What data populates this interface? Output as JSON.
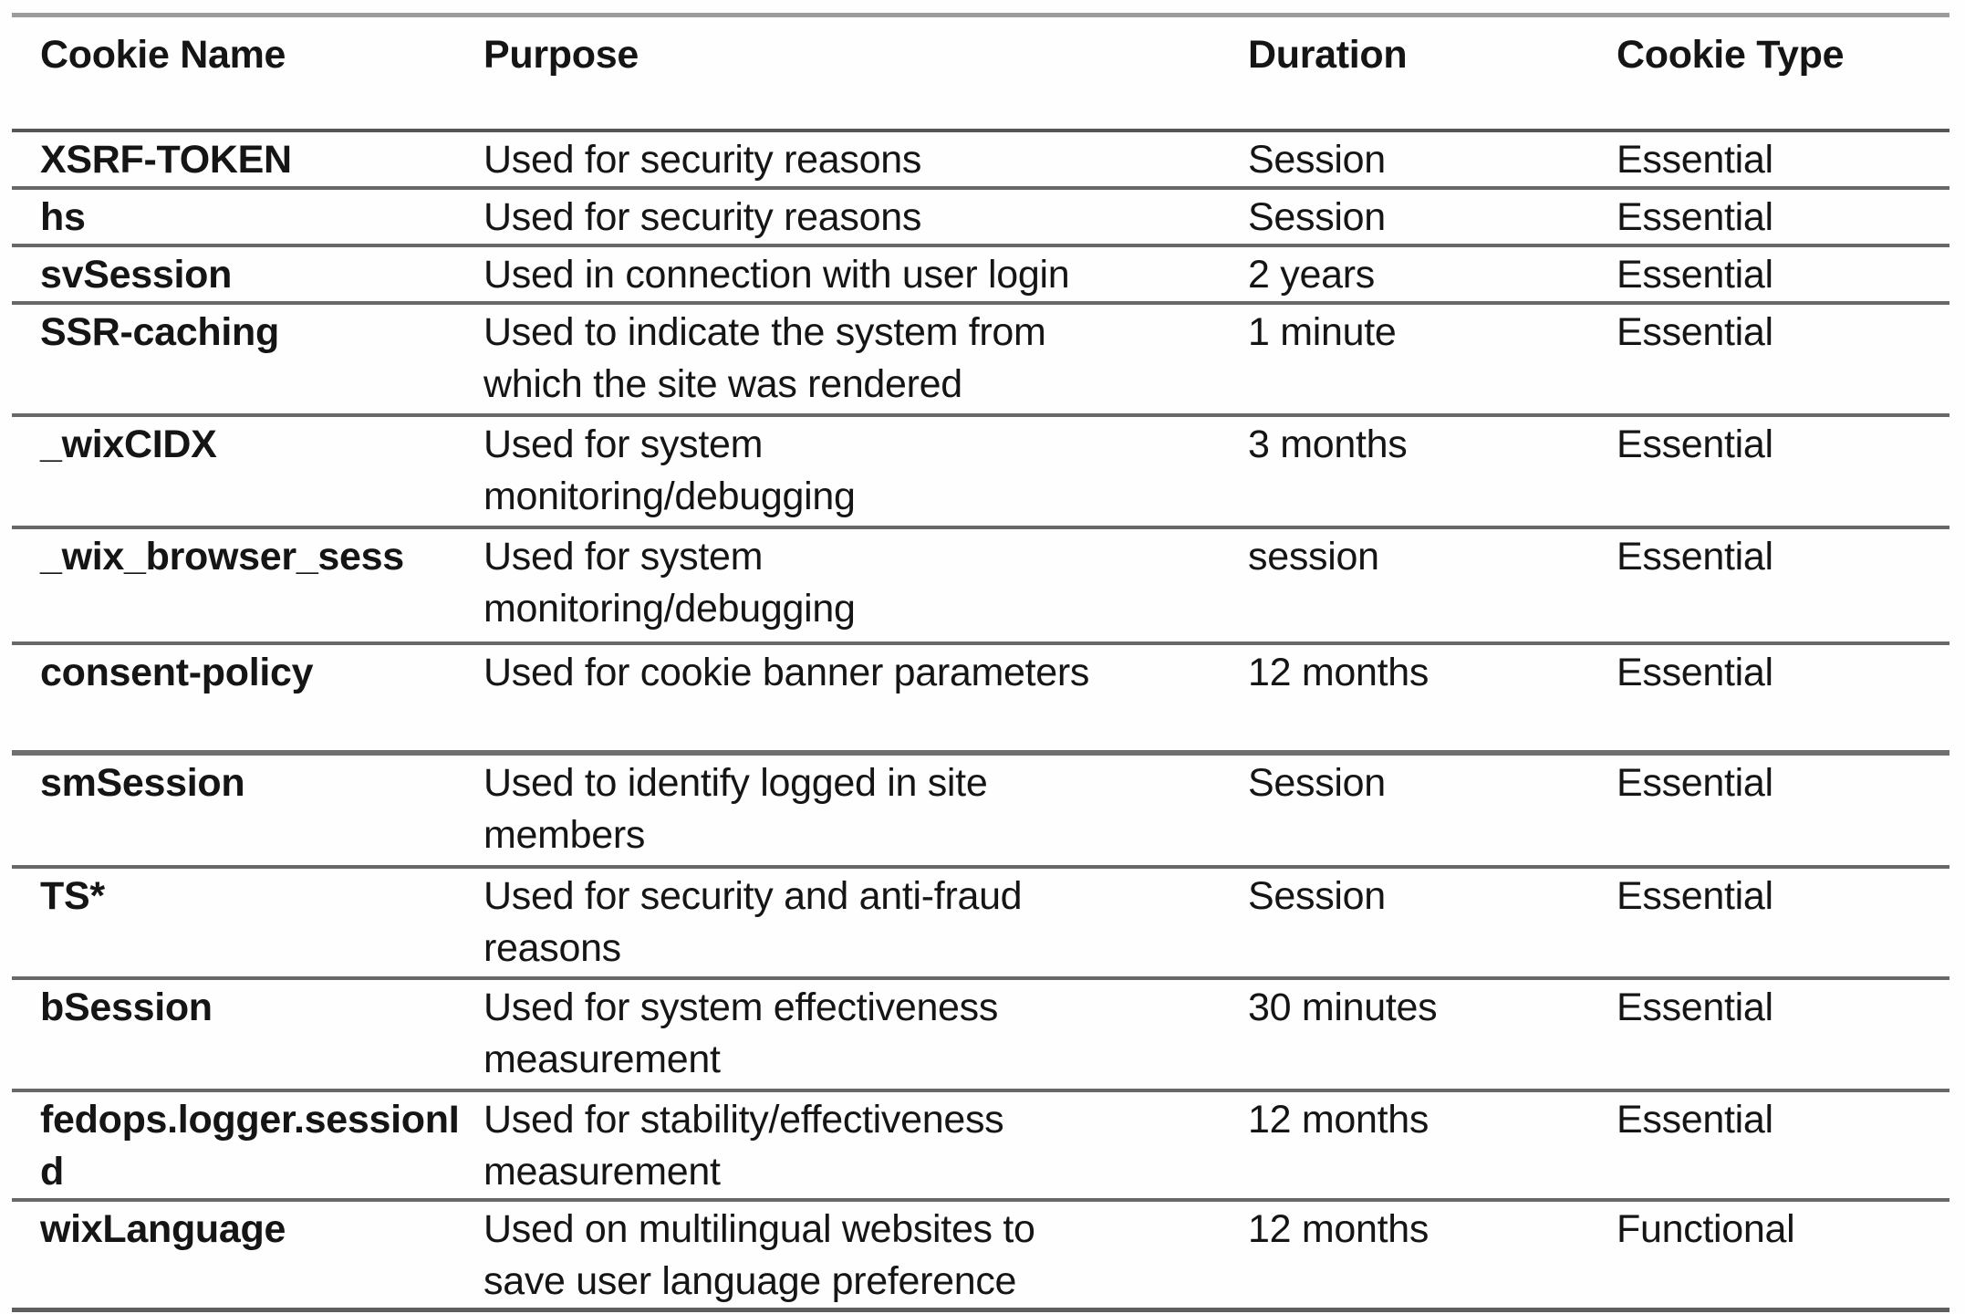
{
  "colors": {
    "background": "#fefefe",
    "text": "#151515",
    "rule_gray": "#686868",
    "rule_top": "#9c9c9c"
  },
  "table": {
    "headers": [
      "Cookie Name",
      "Purpose",
      "Duration",
      "Cookie Type"
    ],
    "rows": [
      {
        "name": "XSRF-TOKEN",
        "purpose": "Used for security reasons",
        "duration": "Session",
        "type": "Essential"
      },
      {
        "name": "hs",
        "purpose": "Used for security reasons",
        "duration": "Session",
        "type": "Essential"
      },
      {
        "name": "svSession",
        "purpose": "Used in connection with user login",
        "duration": "2 years",
        "type": "Essential"
      },
      {
        "name": "SSR-caching",
        "purpose": "Used to indicate the system from\nwhich the site was rendered",
        "duration": "1 minute",
        "type": "Essential"
      },
      {
        "name": "_wixCIDX",
        "purpose": "Used for system\nmonitoring/debugging",
        "duration": "3 months",
        "type": "Essential"
      },
      {
        "name": "_wix_browser_sess",
        "purpose": "Used for system\nmonitoring/debugging",
        "duration": "session",
        "type": "Essential"
      },
      {
        "name": "consent-policy",
        "purpose": "Used for cookie banner parameters",
        "duration": "12 months",
        "type": "Essential"
      },
      {
        "name": "smSession",
        "purpose": "Used to identify logged in site\nmembers",
        "duration": "Session",
        "type": "Essential"
      },
      {
        "name": "TS*",
        "purpose": "Used for security and anti-fraud\nreasons",
        "duration": "Session",
        "type": "Essential"
      },
      {
        "name": "bSession",
        "purpose": "Used for system effectiveness\nmeasurement",
        "duration": "30 minutes",
        "type": "Essential"
      },
      {
        "name": "fedops.logger.sessionId",
        "purpose": "Used for stability/effectiveness\nmeasurement",
        "duration": "12 months",
        "type": "Essential"
      },
      {
        "name": "wixLanguage",
        "purpose": "Used on multilingual websites to\nsave user language preference",
        "duration": "12 months",
        "type": "Functional"
      }
    ]
  }
}
